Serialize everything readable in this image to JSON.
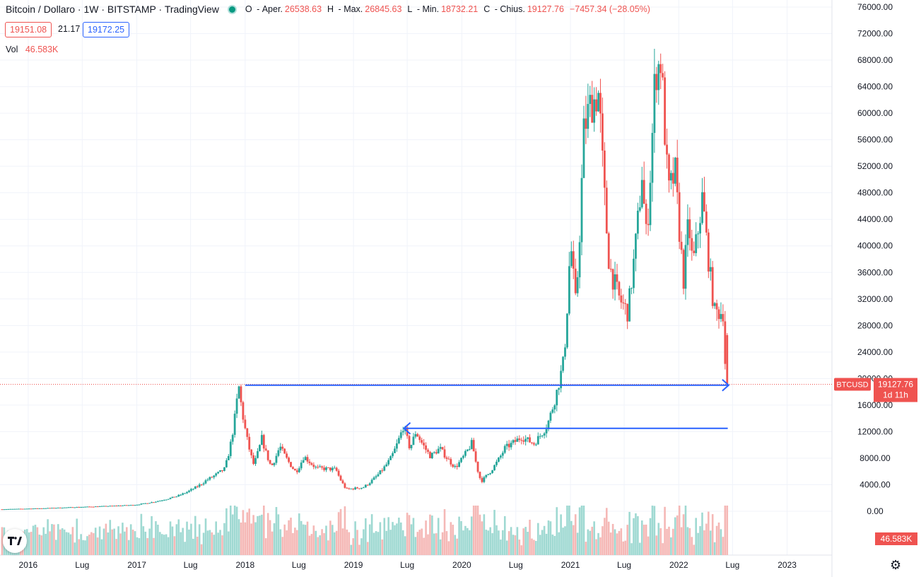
{
  "header": {
    "title": "Bitcoin / Dollaro · 1W · BITSTAMP · TradingView",
    "ohlc": [
      {
        "key": "O",
        "label": "Aper.",
        "value": "26538.63"
      },
      {
        "key": "H",
        "label": "Max.",
        "value": "26845.63"
      },
      {
        "key": "L",
        "label": "Min.",
        "value": "18732.21"
      },
      {
        "key": "C",
        "label": "Chius.",
        "value": "19127.76"
      }
    ],
    "change": "−7457.34 (−28.05%)",
    "sell_price": "19151.08",
    "spread": "21.17",
    "buy_price": "19172.25",
    "vol_label": "Vol",
    "vol_value": "46.583K"
  },
  "colors": {
    "up": "#26a69a",
    "down": "#ef5350",
    "arrow": "#2962ff",
    "grid": "#f0f3fa"
  },
  "icons": {
    "logo": "tradingview-logo-icon",
    "settings": "gear-icon"
  },
  "price_label": {
    "symbol": "BTCUSD",
    "price": "19127.76",
    "countdown": "1d 11h"
  },
  "volume_label": "46.583K",
  "chart_data": {
    "type": "candlestick",
    "title": "Bitcoin / Dollaro · 1W · BITSTAMP",
    "y_axis": {
      "ticks": [
        0,
        4000,
        8000,
        12000,
        16000,
        20000,
        24000,
        28000,
        32000,
        36000,
        40000,
        44000,
        48000,
        52000,
        56000,
        60000,
        64000,
        68000,
        72000,
        76000
      ],
      "range": [
        -2000,
        77000
      ],
      "position": "right",
      "format": "2 decimals"
    },
    "x_axis": {
      "ticks": [
        {
          "date": "2016-01-01",
          "label": "2016"
        },
        {
          "date": "2016-07-01",
          "label": "Lug"
        },
        {
          "date": "2017-01-01",
          "label": "2017"
        },
        {
          "date": "2017-07-01",
          "label": "Lug"
        },
        {
          "date": "2018-01-01",
          "label": "2018"
        },
        {
          "date": "2018-07-01",
          "label": "Lug"
        },
        {
          "date": "2019-01-01",
          "label": "2019"
        },
        {
          "date": "2019-07-01",
          "label": "Lug"
        },
        {
          "date": "2020-01-01",
          "label": "2020"
        },
        {
          "date": "2020-07-01",
          "label": "Lug"
        },
        {
          "date": "2021-01-01",
          "label": "2021"
        },
        {
          "date": "2021-07-01",
          "label": "Lug"
        },
        {
          "date": "2022-01-01",
          "label": "2022"
        },
        {
          "date": "2022-07-01",
          "label": "Lug"
        },
        {
          "date": "2023-01-01",
          "label": "2023"
        }
      ],
      "range": [
        "2015-09-28",
        "2023-06-01"
      ]
    },
    "grid": true,
    "price_anchors": [
      [
        "2015-10-05",
        300
      ],
      [
        "2016-06-15",
        620
      ],
      [
        "2016-12-31",
        950
      ],
      [
        "2017-05-25",
        2300
      ],
      [
        "2017-08-31",
        4700
      ],
      [
        "2017-10-31",
        6400
      ],
      [
        "2017-12-17",
        19000
      ],
      [
        "2018-02-06",
        7000
      ],
      [
        "2018-03-05",
        11000
      ],
      [
        "2018-04-06",
        6700
      ],
      [
        "2018-05-05",
        9800
      ],
      [
        "2018-06-28",
        5900
      ],
      [
        "2018-07-25",
        8300
      ],
      [
        "2018-09-05",
        6500
      ],
      [
        "2018-11-10",
        6300
      ],
      [
        "2018-12-15",
        3300
      ],
      [
        "2019-02-10",
        3600
      ],
      [
        "2019-05-14",
        8000
      ],
      [
        "2019-06-26",
        13000
      ],
      [
        "2019-07-17",
        9500
      ],
      [
        "2019-08-06",
        12000
      ],
      [
        "2019-09-24",
        8300
      ],
      [
        "2019-10-26",
        9500
      ],
      [
        "2019-12-17",
        6600
      ],
      [
        "2020-02-12",
        10400
      ],
      [
        "2020-03-13",
        4500
      ],
      [
        "2020-06-01",
        9500
      ],
      [
        "2020-07-27",
        11200
      ],
      [
        "2020-09-07",
        10200
      ],
      [
        "2020-10-21",
        12900
      ],
      [
        "2020-12-17",
        23000
      ],
      [
        "2021-01-08",
        41000
      ],
      [
        "2021-01-26",
        31000
      ],
      [
        "2021-02-21",
        57000
      ],
      [
        "2021-03-13",
        61000
      ],
      [
        "2021-04-14",
        63000
      ],
      [
        "2021-05-19",
        37000
      ],
      [
        "2021-06-22",
        32000
      ],
      [
        "2021-07-20",
        30000
      ],
      [
        "2021-09-06",
        51000
      ],
      [
        "2021-09-21",
        41000
      ],
      [
        "2021-10-20",
        66000
      ],
      [
        "2021-11-10",
        68000
      ],
      [
        "2021-12-04",
        48000
      ],
      [
        "2021-12-27",
        51000
      ],
      [
        "2022-01-24",
        35000
      ],
      [
        "2022-02-10",
        44000
      ],
      [
        "2022-02-24",
        37000
      ],
      [
        "2022-03-29",
        47500
      ],
      [
        "2022-05-09",
        30000
      ],
      [
        "2022-06-06",
        30000
      ],
      [
        "2022-06-13",
        22500
      ],
      [
        "2022-06-18",
        19127.76
      ]
    ],
    "volume_axis_label": "46.583K",
    "annotations": [
      {
        "type": "arrow",
        "from": [
          "2018-01-01",
          19000
        ],
        "to": [
          "2022-06-18",
          19000
        ],
        "color": "#2962ff"
      },
      {
        "type": "arrow",
        "from": [
          "2022-06-15",
          12500
        ],
        "to": [
          "2019-06-20",
          12500
        ],
        "color": "#2962ff"
      }
    ],
    "last_price_line": 19127.76
  }
}
